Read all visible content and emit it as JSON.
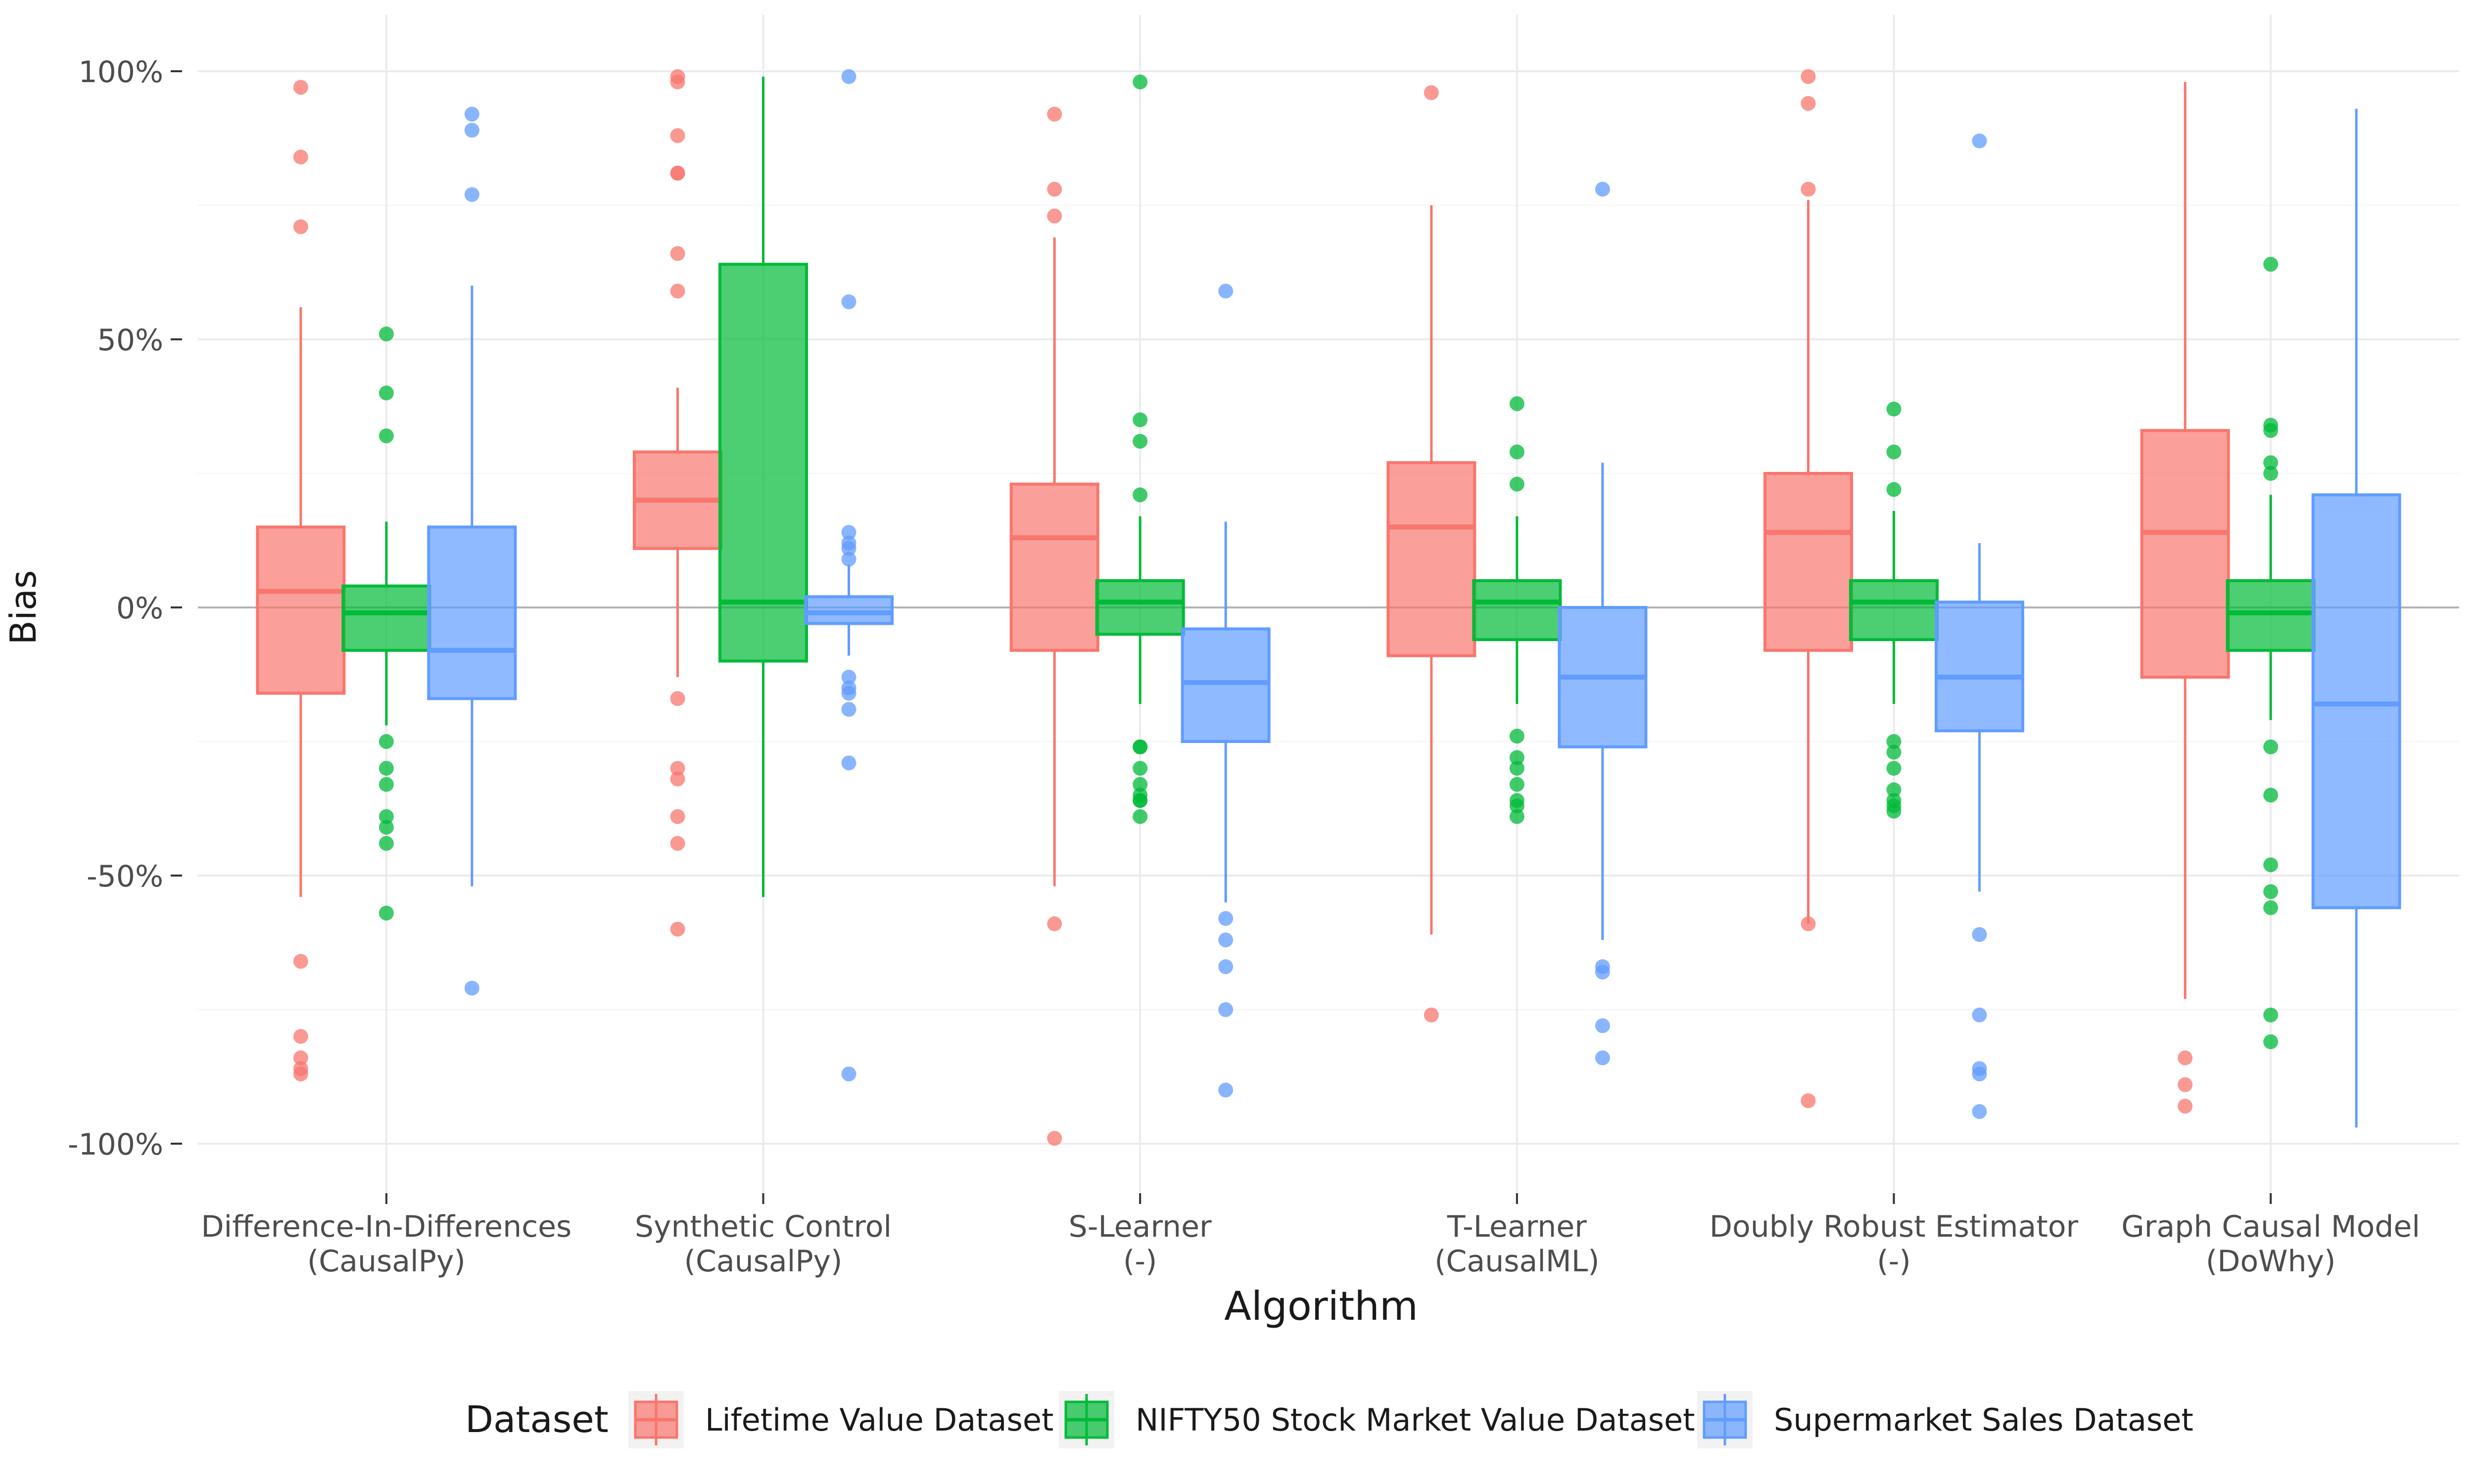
{
  "chart_data": {
    "type": "boxplot",
    "xlabel": "Algorithm",
    "ylabel": "Bias",
    "ylim": [
      -110,
      102
    ],
    "y_ticks": [
      {
        "value": 100,
        "label": "100%"
      },
      {
        "value": 50,
        "label": "50%"
      },
      {
        "value": 0,
        "label": "0%"
      },
      {
        "value": -50,
        "label": "-50%"
      },
      {
        "value": -100,
        "label": "-100%"
      }
    ],
    "legend_title": "Dataset",
    "legend_position": "bottom",
    "categories": [
      {
        "line1": "Difference-In-Differences",
        "line2": "(CausalPy)"
      },
      {
        "line1": "Synthetic Control",
        "line2": "(CausalPy)"
      },
      {
        "line1": "S-Learner",
        "line2": "(-)"
      },
      {
        "line1": "T-Learner",
        "line2": "(CausalML)"
      },
      {
        "line1": "Doubly Robust Estimator",
        "line2": "(-)"
      },
      {
        "line1": "Graph Causal Model",
        "line2": "(DoWhy)"
      }
    ],
    "series": [
      {
        "name": "Lifetime Value Dataset",
        "color": "#f8766d",
        "boxes": [
          {
            "q1": -16,
            "median": 3,
            "q3": 15,
            "whisker_low": -54,
            "whisker_high": 56,
            "outliers": [
              97,
              84,
              71,
              -66,
              -80,
              -84,
              -86,
              -87
            ]
          },
          {
            "q1": 11,
            "median": 20,
            "q3": 29,
            "whisker_low": -13,
            "whisker_high": 41,
            "outliers": [
              99,
              98,
              88,
              81,
              81,
              66,
              59,
              -17,
              -30,
              -32,
              -39,
              -44,
              -60
            ]
          },
          {
            "q1": -8,
            "median": 13,
            "q3": 23,
            "whisker_low": -52,
            "whisker_high": 69,
            "outliers": [
              92,
              78,
              73,
              -59,
              -99
            ]
          },
          {
            "q1": -9,
            "median": 15,
            "q3": 27,
            "whisker_low": -61,
            "whisker_high": 75,
            "outliers": [
              96,
              -76
            ]
          },
          {
            "q1": -8,
            "median": 14,
            "q3": 25,
            "whisker_low": -59,
            "whisker_high": 76,
            "outliers": [
              99,
              94,
              78,
              -59,
              -92
            ]
          },
          {
            "q1": -13,
            "median": 14,
            "q3": 33,
            "whisker_low": -73,
            "whisker_high": 98,
            "outliers": [
              -84,
              -89,
              -93
            ]
          }
        ]
      },
      {
        "name": "NIFTY50 Stock Market Value Dataset",
        "color": "#00ba38",
        "boxes": [
          {
            "q1": -8,
            "median": -1,
            "q3": 4,
            "whisker_low": -22,
            "whisker_high": 16,
            "outliers": [
              51,
              40,
              32,
              -25,
              -30,
              -33,
              -39,
              -41,
              -44,
              -57
            ]
          },
          {
            "q1": -10,
            "median": 1,
            "q3": 64,
            "whisker_low": -54,
            "whisker_high": 99,
            "outliers": []
          },
          {
            "q1": -5,
            "median": 1,
            "q3": 5,
            "whisker_low": -18,
            "whisker_high": 17,
            "outliers": [
              98,
              35,
              31,
              21,
              -26,
              -26,
              -30,
              -33,
              -35,
              -36,
              -36,
              -39
            ]
          },
          {
            "q1": -6,
            "median": 1,
            "q3": 5,
            "whisker_low": -18,
            "whisker_high": 17,
            "outliers": [
              38,
              29,
              23,
              -24,
              -28,
              -30,
              -33,
              -36,
              -37,
              -39
            ]
          },
          {
            "q1": -6,
            "median": 1,
            "q3": 5,
            "whisker_low": -18,
            "whisker_high": 18,
            "outliers": [
              37,
              29,
              22,
              -25,
              -27,
              -30,
              -34,
              -36,
              -37,
              -38
            ]
          },
          {
            "q1": -8,
            "median": -1,
            "q3": 5,
            "whisker_low": -21,
            "whisker_high": 21,
            "outliers": [
              64,
              34,
              33,
              27,
              25,
              -26,
              -35,
              -48,
              -53,
              -56,
              -76,
              -81
            ]
          }
        ]
      },
      {
        "name": "Supermarket Sales Dataset",
        "color": "#619cff",
        "boxes": [
          {
            "q1": -17,
            "median": -8,
            "q3": 15,
            "whisker_low": -52,
            "whisker_high": 60,
            "outliers": [
              92,
              89,
              77,
              -71
            ]
          },
          {
            "q1": -3,
            "median": -1,
            "q3": 2,
            "whisker_low": -9,
            "whisker_high": 8,
            "outliers": [
              99,
              57,
              14,
              12,
              11,
              9,
              -13,
              -15,
              -16,
              -19,
              -29,
              -87
            ]
          },
          {
            "q1": -25,
            "median": -14,
            "q3": -4,
            "whisker_low": -55,
            "whisker_high": 16,
            "outliers": [
              59,
              -58,
              -62,
              -67,
              -75,
              -90
            ]
          },
          {
            "q1": -26,
            "median": -13,
            "q3": 0,
            "whisker_low": -62,
            "whisker_high": 27,
            "outliers": [
              78,
              -67,
              -68,
              -78,
              -84
            ]
          },
          {
            "q1": -23,
            "median": -13,
            "q3": 1,
            "whisker_low": -53,
            "whisker_high": 12,
            "outliers": [
              87,
              -61,
              -76,
              -86,
              -87,
              -94
            ]
          },
          {
            "q1": -56,
            "median": -18,
            "q3": 21,
            "whisker_low": -97,
            "whisker_high": 93,
            "outliers": []
          }
        ]
      }
    ]
  }
}
